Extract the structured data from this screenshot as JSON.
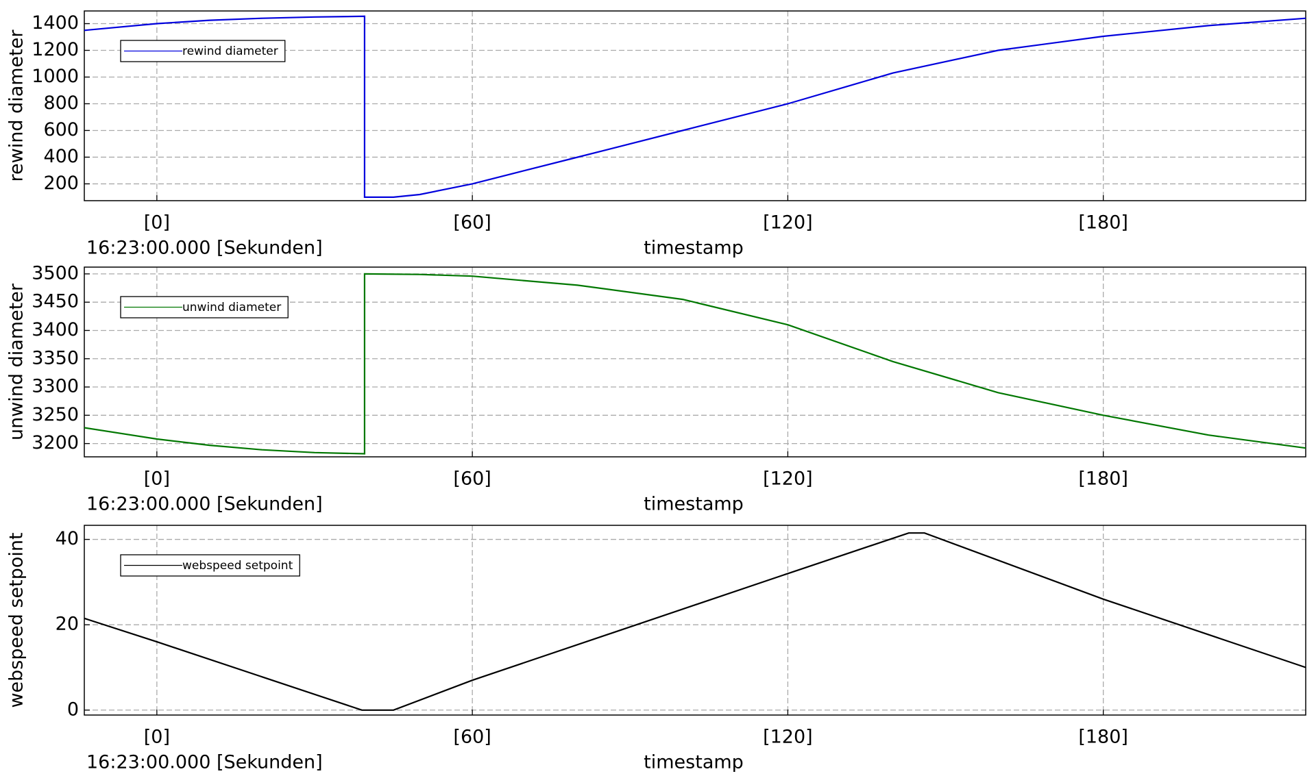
{
  "chart_data": [
    {
      "type": "line",
      "x_label": "timestamp",
      "x_origin_label": "16:23:00.000 [Sekunden]",
      "y_label": "rewind diameter",
      "grid": true,
      "legend": "upper-left",
      "x": [
        -13.8,
        0,
        10,
        20,
        30,
        39.5,
        39.5,
        45,
        50,
        60,
        80,
        100,
        120,
        140,
        160,
        180,
        200,
        218.5
      ],
      "series": [
        {
          "name": "rewind diameter",
          "color": "#0000dd",
          "values": [
            1350,
            1400,
            1425,
            1440,
            1450,
            1455,
            100,
            100,
            120,
            200,
            400,
            600,
            800,
            1030,
            1200,
            1305,
            1385,
            1440
          ]
        }
      ],
      "xlim": [
        -13.8,
        218.5
      ],
      "xticks": [
        {
          "value": 0,
          "label": "[0]"
        },
        {
          "value": 60,
          "label": "[60]"
        },
        {
          "value": 120,
          "label": "[120]"
        },
        {
          "value": 180,
          "label": "[180]"
        }
      ],
      "ylim": [
        74,
        1495
      ],
      "yticks": [
        200,
        400,
        600,
        800,
        1000,
        1200,
        1400
      ]
    },
    {
      "type": "line",
      "x_label": "timestamp",
      "x_origin_label": "16:23:00.000 [Sekunden]",
      "y_label": "unwind diameter",
      "grid": true,
      "legend": "upper-left",
      "x": [
        -13.8,
        0,
        10,
        20,
        30,
        39.5,
        39.5,
        50,
        60,
        80,
        100,
        120,
        140,
        160,
        180,
        200,
        218.5
      ],
      "series": [
        {
          "name": "unwind diameter",
          "color": "#007700",
          "values": [
            3228,
            3208,
            3197,
            3189,
            3184,
            3182,
            3500,
            3499,
            3496,
            3480,
            3455,
            3410,
            3345,
            3290,
            3250,
            3215,
            3192
          ]
        }
      ],
      "xlim": [
        -13.8,
        218.5
      ],
      "xticks": [
        {
          "value": 0,
          "label": "[0]"
        },
        {
          "value": 60,
          "label": "[60]"
        },
        {
          "value": 120,
          "label": "[120]"
        },
        {
          "value": 180,
          "label": "[180]"
        }
      ],
      "ylim": [
        3176.5,
        3512
      ],
      "yticks": [
        3200,
        3250,
        3300,
        3350,
        3400,
        3450,
        3500
      ]
    },
    {
      "type": "line",
      "x_label": "timestamp",
      "x_origin_label": "16:23:00.000 [Sekunden]",
      "y_label": "webspeed setpoint",
      "grid": true,
      "legend": "upper-left",
      "x": [
        -13.8,
        0,
        39,
        45,
        60,
        120,
        143,
        146,
        180,
        218.5
      ],
      "series": [
        {
          "name": "webspeed setpoint",
          "color": "#000000",
          "values": [
            21.5,
            16,
            0,
            0,
            7,
            32,
            41.5,
            41.5,
            26,
            10
          ]
        }
      ],
      "xlim": [
        -13.8,
        218.5
      ],
      "xticks": [
        {
          "value": 0,
          "label": "[0]"
        },
        {
          "value": 60,
          "label": "[60]"
        },
        {
          "value": 120,
          "label": "[120]"
        },
        {
          "value": 180,
          "label": "[180]"
        }
      ],
      "ylim": [
        -1.16,
        43.3
      ],
      "yticks": [
        0,
        20,
        40
      ]
    }
  ]
}
